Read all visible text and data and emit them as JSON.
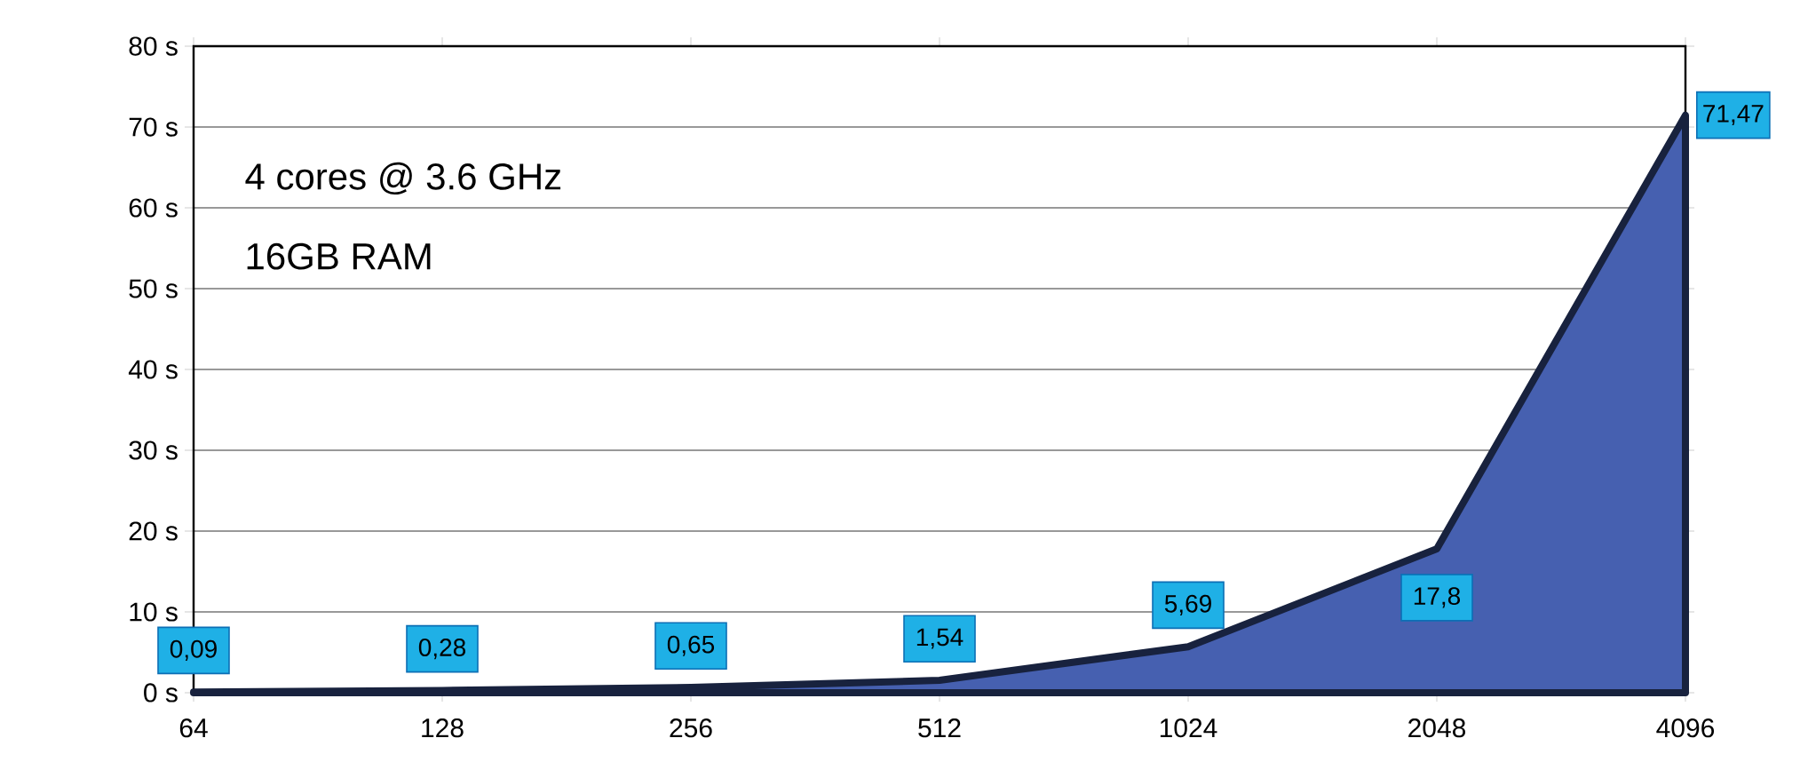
{
  "chart_data": {
    "type": "area",
    "categories": [
      "64",
      "128",
      "256",
      "512",
      "1024",
      "2048",
      "4096"
    ],
    "values": [
      0.09,
      0.28,
      0.65,
      1.54,
      5.69,
      17.8,
      71.47
    ],
    "value_labels": [
      "0,09",
      "0,28",
      "0,65",
      "1,54",
      "5,69",
      "17,8",
      "71,47"
    ],
    "color": "#4660b0",
    "ylim": [
      0,
      80
    ],
    "yticks": [
      {
        "value": 0,
        "label": "0 s"
      },
      {
        "value": 10,
        "label": "10 s"
      },
      {
        "value": 20,
        "label": "20 s"
      },
      {
        "value": 30,
        "label": "30 s"
      },
      {
        "value": 40,
        "label": "40 s"
      },
      {
        "value": 50,
        "label": "50 s"
      },
      {
        "value": 60,
        "label": "60 s"
      },
      {
        "value": 70,
        "label": "70 s"
      },
      {
        "value": 80,
        "label": "80 s"
      }
    ],
    "grid": "y",
    "annotations": [
      "4 cores @ 3.6 GHz",
      "16GB RAM"
    ]
  }
}
